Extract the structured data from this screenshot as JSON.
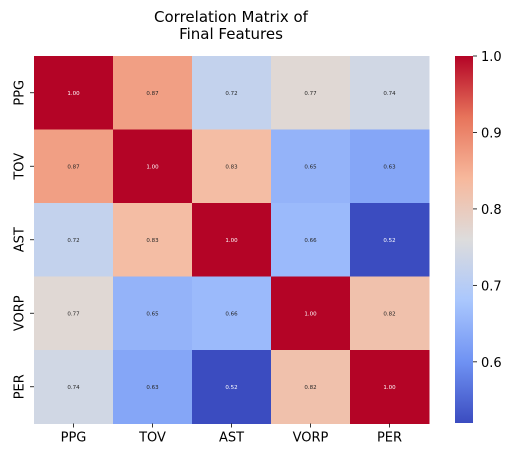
{
  "chart_data": {
    "type": "heatmap",
    "title_lines": [
      "Correlation Matrix of",
      "Final Features"
    ],
    "rows": [
      "PPG",
      "TOV",
      "AST",
      "VORP",
      "PER"
    ],
    "columns": [
      "PPG",
      "TOV",
      "AST",
      "VORP",
      "PER"
    ],
    "values": [
      [
        1.0,
        0.87,
        0.72,
        0.77,
        0.74
      ],
      [
        0.87,
        1.0,
        0.83,
        0.65,
        0.63
      ],
      [
        0.72,
        0.83,
        1.0,
        0.66,
        0.52
      ],
      [
        0.77,
        0.65,
        0.66,
        1.0,
        0.82
      ],
      [
        0.74,
        0.63,
        0.52,
        0.82,
        1.0
      ]
    ],
    "value_labels": [
      [
        "1.00",
        "0.87",
        "0.72",
        "0.77",
        "0.74"
      ],
      [
        "0.87",
        "1.00",
        "0.83",
        "0.65",
        "0.63"
      ],
      [
        "0.72",
        "0.83",
        "1.00",
        "0.66",
        "0.52"
      ],
      [
        "0.77",
        "0.65",
        "0.66",
        "1.00",
        "0.82"
      ],
      [
        "0.74",
        "0.63",
        "0.52",
        "0.82",
        "1.00"
      ]
    ],
    "colormap": "coolwarm",
    "colormap_stops": [
      "#3b4cc0",
      "#6f92f3",
      "#aac7fd",
      "#dddcdc",
      "#f7b89c",
      "#e7745b",
      "#b40426"
    ],
    "value_range": [
      0.52,
      1.0
    ],
    "colorbar": {
      "ticks": [
        0.6,
        0.7,
        0.8,
        0.9,
        1.0
      ],
      "tick_labels": [
        "0.6",
        "0.7",
        "0.8",
        "0.9",
        "1.0"
      ]
    },
    "light_text_color": "#ffffff",
    "dark_text_color": "#262626"
  }
}
